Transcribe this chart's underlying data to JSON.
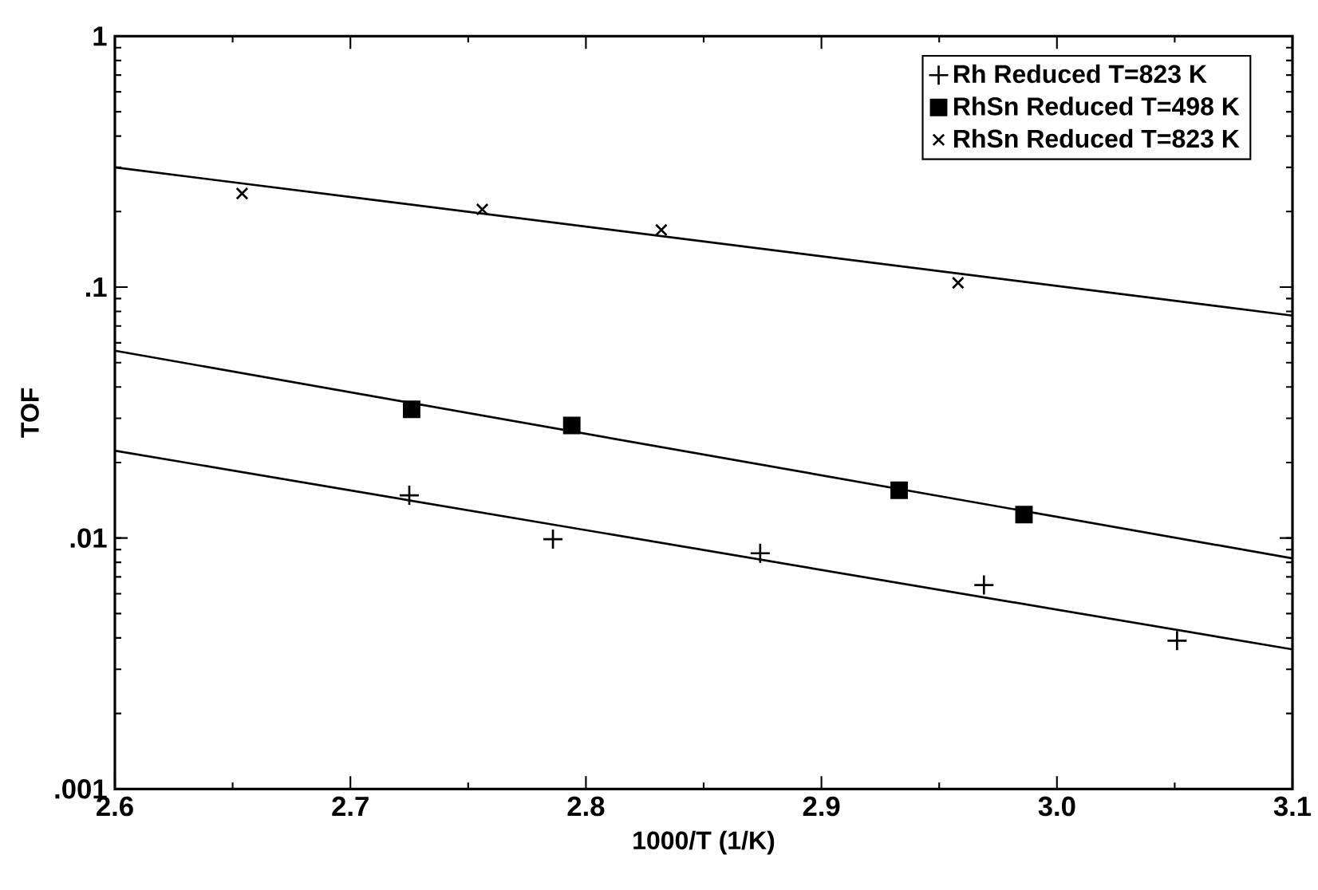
{
  "chart_data": {
    "type": "scatter",
    "xlabel": "1000/T  (1/K)",
    "ylabel": "TOF",
    "log": "y",
    "legend": "top right",
    "grid": false,
    "xlim": [
      2.6,
      3.1
    ],
    "ylim": [
      0.001,
      1
    ],
    "xticks": [
      2.6,
      2.7,
      2.8,
      2.9,
      {
        "value": 3.0,
        "label": "3.0"
      },
      3.1
    ],
    "yticks": [
      {
        "value": 0.001,
        "label": ".001"
      },
      {
        "value": 0.01,
        "label": ".01"
      },
      {
        "value": 0.1,
        "label": ".1"
      },
      1
    ],
    "series": [
      {
        "name": "Rh Reduced T=823 K",
        "marker": "plus",
        "color": "#000000",
        "x": [
          2.725,
          2.786,
          2.874,
          2.969,
          3.051
        ],
        "values": [
          0.0148,
          0.0099,
          0.0087,
          0.0065,
          0.0039
        ]
      },
      {
        "name": "RhSn Reduced T=498 K",
        "marker": "square",
        "color": "#000000",
        "x": [
          2.726,
          2.794,
          2.933,
          2.986
        ],
        "values": [
          0.0326,
          0.0281,
          0.0155,
          0.0124
        ]
      },
      {
        "name": "RhSn Reduced T=823 K",
        "marker": "cross",
        "color": "#000000",
        "x": [
          2.654,
          2.756,
          2.832,
          2.958
        ],
        "values": [
          0.236,
          0.204,
          0.169,
          0.104
        ]
      },
      {
        "type": "line",
        "marker": "none",
        "line_style": "solid",
        "color": "#000000",
        "x": [
          2.6,
          3.1
        ],
        "values": [
          0.0223,
          0.0036
        ]
      },
      {
        "type": "line",
        "marker": "none",
        "line_style": "solid",
        "color": "#000000",
        "x": [
          2.6,
          3.1
        ],
        "values": [
          0.0558,
          0.0083
        ]
      },
      {
        "type": "line",
        "marker": "none",
        "line_style": "solid",
        "color": "#000000",
        "x": [
          2.6,
          3.1
        ],
        "values": [
          0.3,
          0.077
        ]
      }
    ]
  }
}
